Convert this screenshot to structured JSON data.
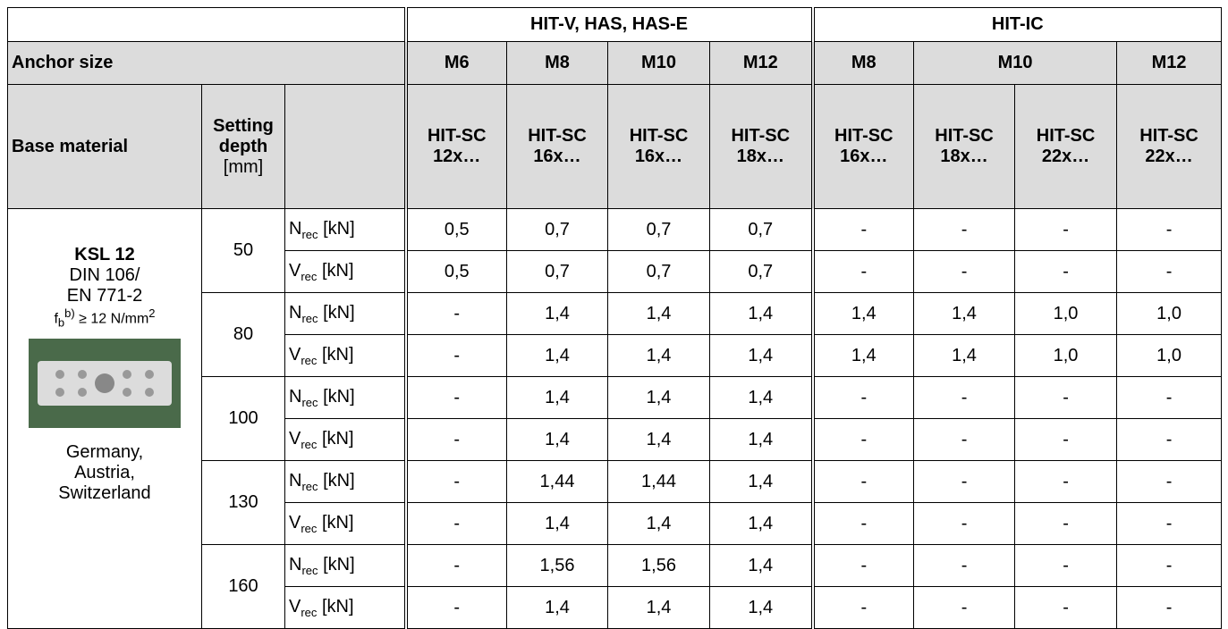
{
  "header": {
    "groups": [
      "HIT-V, HAS, HAS-E",
      "HIT-IC"
    ],
    "anchor_size_label": "Anchor size",
    "sizes": [
      "M6",
      "M8",
      "M10",
      "M12",
      "M8",
      "M10",
      "M12"
    ],
    "base_material_label": "Base material",
    "setting_depth_label": "Setting depth",
    "setting_depth_unit": "[mm]",
    "sleeves": [
      "HIT-SC 12x…",
      "HIT-SC 16x…",
      "HIT-SC 16x…",
      "HIT-SC 18x…",
      "HIT-SC 16x…",
      "HIT-SC 18x…",
      "HIT-SC 22x…",
      "HIT-SC 22x…"
    ]
  },
  "base_material": {
    "name": "KSL 12",
    "standard": [
      "DIN 106/",
      "EN 771-2"
    ],
    "strength": {
      "symbol": "f",
      "sub": "b",
      "note": "b)",
      "text": "≥ 12 N/mm",
      "exp": "2"
    },
    "countries": [
      "Germany,",
      "Austria,",
      "Switzerland"
    ]
  },
  "loads": [
    {
      "symbol": "N",
      "sub": "rec",
      "unit": "[kN]"
    },
    {
      "symbol": "V",
      "sub": "rec",
      "unit": "[kN]"
    }
  ],
  "rows": [
    {
      "depth": "50",
      "values": [
        [
          "0,5",
          "0,7",
          "0,7",
          "0,7",
          "-",
          "-",
          "-",
          "-"
        ],
        [
          "0,5",
          "0,7",
          "0,7",
          "0,7",
          "-",
          "-",
          "-",
          "-"
        ]
      ]
    },
    {
      "depth": "80",
      "values": [
        [
          "-",
          "1,4",
          "1,4",
          "1,4",
          "1,4",
          "1,4",
          "1,0",
          "1,0"
        ],
        [
          "-",
          "1,4",
          "1,4",
          "1,4",
          "1,4",
          "1,4",
          "1,0",
          "1,0"
        ]
      ]
    },
    {
      "depth": "100",
      "values": [
        [
          "-",
          "1,4",
          "1,4",
          "1,4",
          "-",
          "-",
          "-",
          "-"
        ],
        [
          "-",
          "1,4",
          "1,4",
          "1,4",
          "-",
          "-",
          "-",
          "-"
        ]
      ]
    },
    {
      "depth": "130",
      "values": [
        [
          "-",
          "1,44",
          "1,44",
          "1,4",
          "-",
          "-",
          "-",
          "-"
        ],
        [
          "-",
          "1,4",
          "1,4",
          "1,4",
          "-",
          "-",
          "-",
          "-"
        ]
      ]
    },
    {
      "depth": "160",
      "values": [
        [
          "-",
          "1,56",
          "1,56",
          "1,4",
          "-",
          "-",
          "-",
          "-"
        ],
        [
          "-",
          "1,4",
          "1,4",
          "1,4",
          "-",
          "-",
          "-",
          "-"
        ]
      ]
    }
  ]
}
